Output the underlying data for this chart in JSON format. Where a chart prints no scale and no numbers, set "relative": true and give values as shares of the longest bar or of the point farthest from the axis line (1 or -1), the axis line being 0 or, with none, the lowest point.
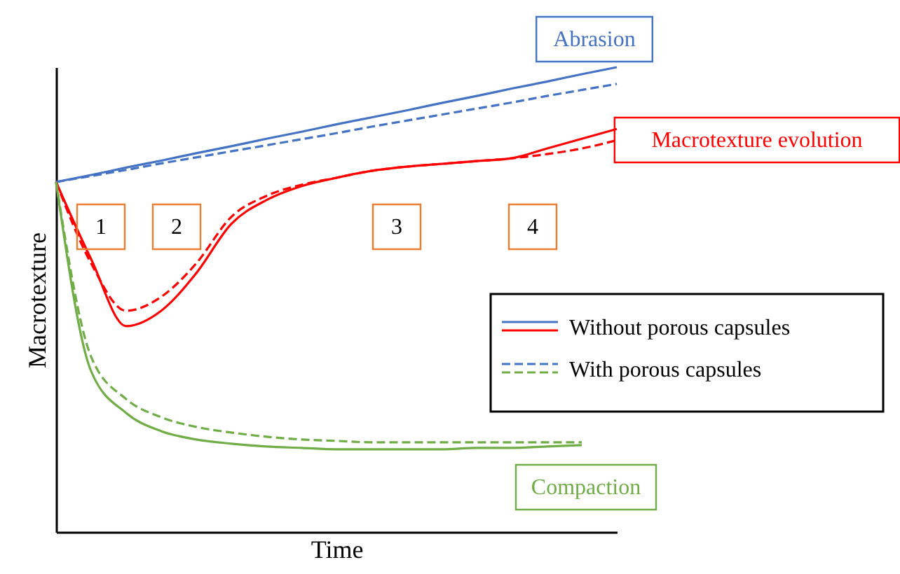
{
  "chart_data": {
    "type": "line",
    "relative": true,
    "xlabel": "Time",
    "ylabel": "Macrotexture",
    "categories": [
      null,
      null,
      null,
      null,
      null,
      null,
      null,
      null,
      null,
      null,
      null,
      null,
      null,
      null,
      null,
      null,
      null
    ],
    "series": [
      {
        "name": "Without porous capsules",
        "color": "#4472c4",
        "line_style": "solid",
        "values": [
          0.753,
          0.768,
          0.784,
          0.799,
          0.815,
          0.83,
          0.846,
          0.861,
          0.877,
          0.892,
          0.907,
          0.923,
          0.938,
          0.954,
          0.969,
          0.985,
          1.0
        ]
      },
      {
        "name": "With porous capsules",
        "color": "#4472c4",
        "line_style": "dashed",
        "values": [
          0.753,
          0.766,
          0.779,
          0.793,
          0.806,
          0.819,
          0.832,
          0.845,
          0.858,
          0.872,
          0.885,
          0.898,
          0.911,
          0.924,
          0.938,
          0.951,
          0.964
        ]
      },
      {
        "color": "#ff0000",
        "line_style": "solid",
        "values": [
          0.753,
          0.587,
          0.443,
          0.476,
          0.557,
          0.663,
          0.714,
          0.744,
          0.762,
          0.777,
          0.786,
          0.792,
          0.798,
          0.804,
          0.825,
          0.846,
          0.867
        ]
      },
      {
        "color": "#ff0000",
        "line_style": "dashed",
        "values": [
          0.753,
          0.578,
          0.476,
          0.506,
          0.578,
          0.678,
          0.723,
          0.747,
          0.762,
          0.777,
          0.786,
          0.792,
          0.798,
          0.804,
          0.813,
          0.825,
          0.843
        ]
      },
      {
        "color": "#70ad47",
        "line_style": "solid",
        "values": [
          0.753,
          0.346,
          0.256,
          0.217,
          0.199,
          0.19,
          0.184,
          0.181,
          0.178,
          0.178,
          0.178,
          0.178,
          0.181,
          0.181,
          0.184,
          0.187,
          null
        ]
      },
      {
        "color": "#70ad47",
        "line_style": "dashed",
        "values": [
          0.753,
          0.377,
          0.286,
          0.247,
          0.226,
          0.214,
          0.205,
          0.199,
          0.196,
          0.193,
          0.193,
          0.193,
          0.193,
          0.193,
          0.193,
          0.193,
          null
        ]
      }
    ],
    "annotations": [
      "Abrasion",
      "Macrotexture evolution",
      "Compaction",
      "1",
      "2",
      "3",
      "4"
    ],
    "legend": "right",
    "grid": false,
    "tick_labels": false
  }
}
